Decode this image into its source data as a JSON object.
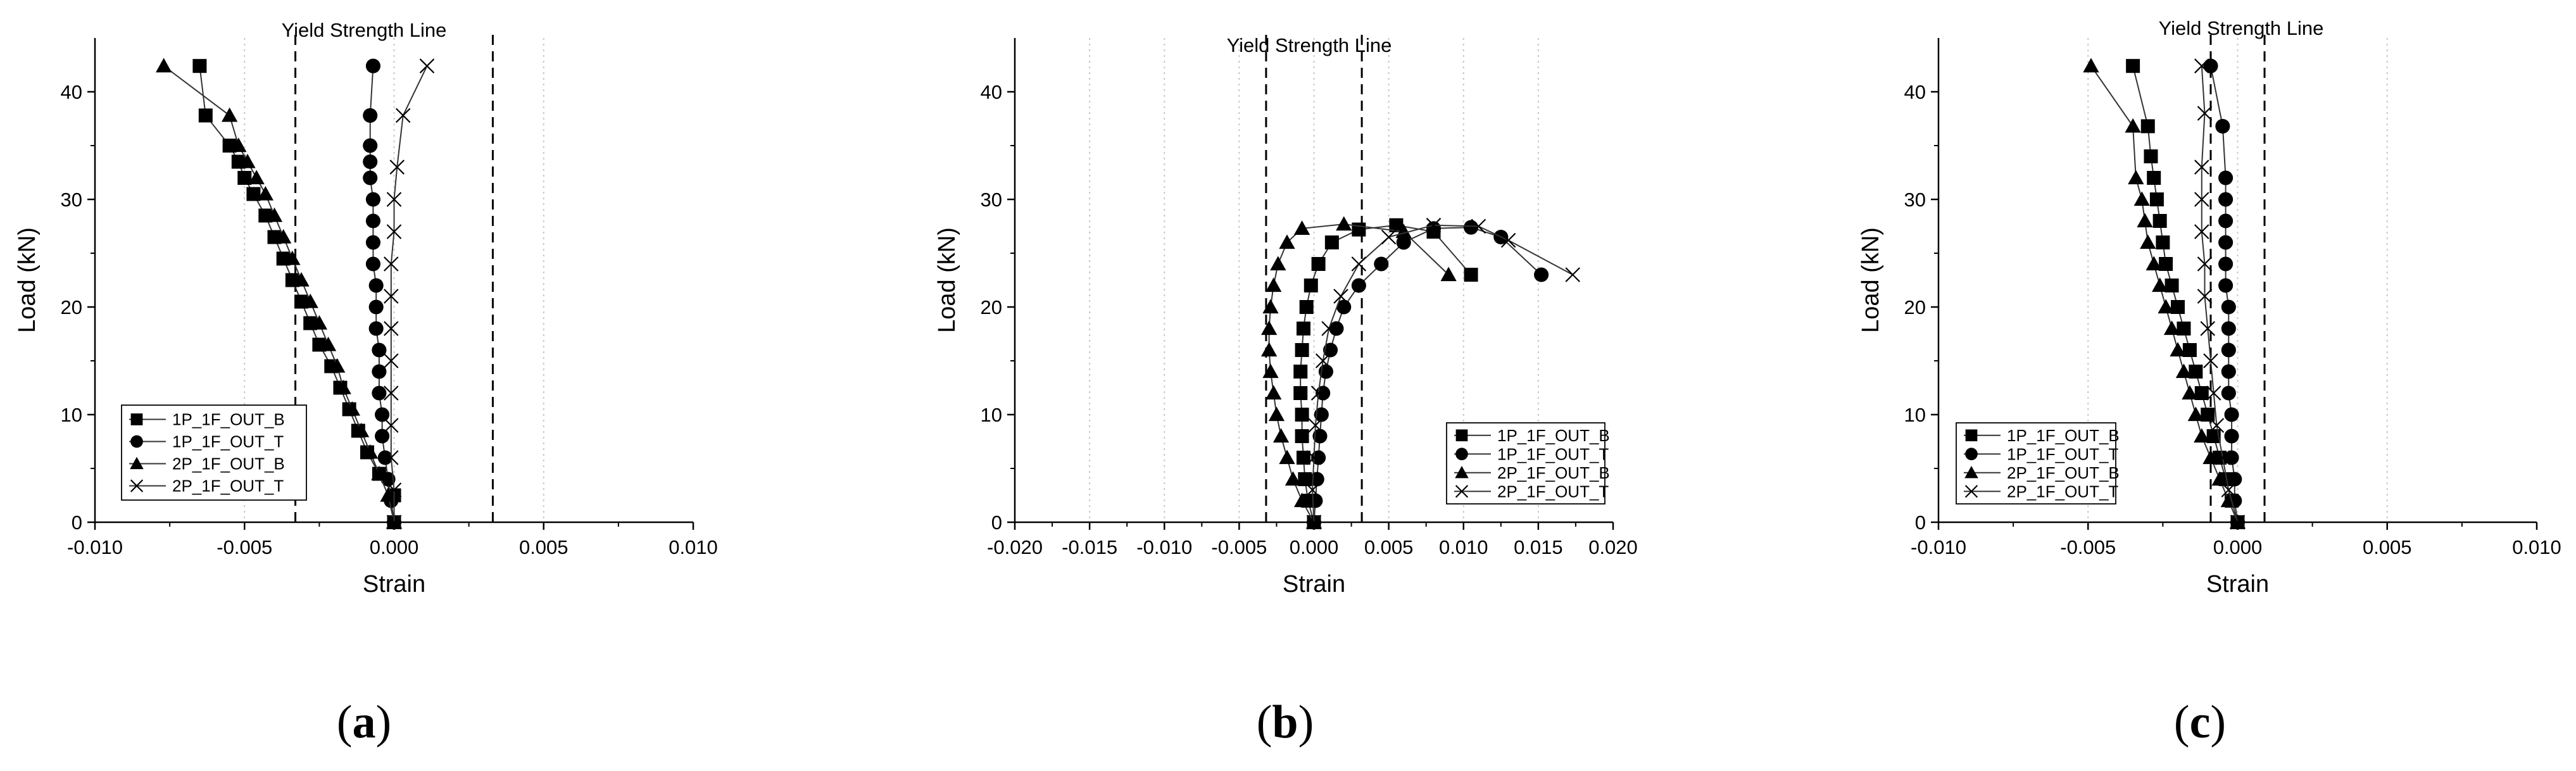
{
  "chart_data": [
    {
      "type": "line",
      "panel_label": {
        "open": "(",
        "letter": "a",
        "close": ")"
      },
      "xlabel": "Strain",
      "ylabel": "Load (kN)",
      "xlim": [
        -0.01,
        0.01
      ],
      "ylim": [
        0,
        45
      ],
      "x_ticks": [
        -0.01,
        -0.005,
        0.0,
        0.005,
        0.01
      ],
      "x_tick_labels": [
        "-0.010",
        "-0.005",
        "0.000",
        "0.005",
        "0.010"
      ],
      "y_ticks": [
        0,
        10,
        20,
        30,
        40
      ],
      "y_tick_labels": [
        "0",
        "10",
        "20",
        "30",
        "40"
      ],
      "grid": "vertical-dotted",
      "annotation": "Yield Strength Line",
      "yield_lines_x": [
        -0.0033,
        0.0033
      ],
      "legend_position": "lower-left",
      "series": [
        {
          "name": "1P_1F_OUT_B",
          "marker": "square",
          "points": [
            [
              0.0,
              0.0
            ],
            [
              0.0,
              2.5
            ],
            [
              -0.0005,
              4.5
            ],
            [
              -0.0009,
              6.5
            ],
            [
              -0.0012,
              8.5
            ],
            [
              -0.0015,
              10.5
            ],
            [
              -0.0018,
              12.5
            ],
            [
              -0.0021,
              14.5
            ],
            [
              -0.0025,
              16.5
            ],
            [
              -0.0028,
              18.5
            ],
            [
              -0.0031,
              20.5
            ],
            [
              -0.0034,
              22.5
            ],
            [
              -0.0037,
              24.5
            ],
            [
              -0.004,
              26.5
            ],
            [
              -0.0043,
              28.5
            ],
            [
              -0.0047,
              30.5
            ],
            [
              -0.005,
              32.0
            ],
            [
              -0.0052,
              33.5
            ],
            [
              -0.0055,
              35.0
            ],
            [
              -0.0063,
              37.8
            ],
            [
              -0.0065,
              42.4
            ]
          ]
        },
        {
          "name": "1P_1F_OUT_T",
          "marker": "circle",
          "points": [
            [
              0.0,
              0.0
            ],
            [
              -0.0001,
              2.0
            ],
            [
              -0.0002,
              4.0
            ],
            [
              -0.0003,
              6.0
            ],
            [
              -0.0004,
              8.0
            ],
            [
              -0.0004,
              10.0
            ],
            [
              -0.0005,
              12.0
            ],
            [
              -0.0005,
              14.0
            ],
            [
              -0.0005,
              16.0
            ],
            [
              -0.0006,
              18.0
            ],
            [
              -0.0006,
              20.0
            ],
            [
              -0.0006,
              22.0
            ],
            [
              -0.0007,
              24.0
            ],
            [
              -0.0007,
              26.0
            ],
            [
              -0.0007,
              28.0
            ],
            [
              -0.0007,
              30.0
            ],
            [
              -0.0008,
              32.0
            ],
            [
              -0.0008,
              33.5
            ],
            [
              -0.0008,
              35.0
            ],
            [
              -0.0008,
              37.8
            ],
            [
              -0.0007,
              42.4
            ]
          ]
        },
        {
          "name": "2P_1F_OUT_B",
          "marker": "triangle",
          "points": [
            [
              0.0,
              0.0
            ],
            [
              -0.0002,
              2.5
            ],
            [
              -0.0005,
              4.5
            ],
            [
              -0.0008,
              6.5
            ],
            [
              -0.0011,
              8.5
            ],
            [
              -0.0014,
              10.5
            ],
            [
              -0.0017,
              12.5
            ],
            [
              -0.0019,
              14.5
            ],
            [
              -0.0022,
              16.5
            ],
            [
              -0.0025,
              18.5
            ],
            [
              -0.0028,
              20.5
            ],
            [
              -0.0031,
              22.5
            ],
            [
              -0.0034,
              24.5
            ],
            [
              -0.0037,
              26.5
            ],
            [
              -0.004,
              28.5
            ],
            [
              -0.0043,
              30.5
            ],
            [
              -0.0046,
              32.0
            ],
            [
              -0.0049,
              33.5
            ],
            [
              -0.0052,
              35.0
            ],
            [
              -0.0055,
              37.8
            ],
            [
              -0.0077,
              42.4
            ]
          ]
        },
        {
          "name": "2P_1F_OUT_T",
          "marker": "x",
          "points": [
            [
              0.0,
              0.0
            ],
            [
              0.0,
              3.0
            ],
            [
              -0.0001,
              6.0
            ],
            [
              -0.0001,
              9.0
            ],
            [
              -0.0001,
              12.0
            ],
            [
              -0.0001,
              15.0
            ],
            [
              -0.0001,
              18.0
            ],
            [
              -0.0001,
              21.0
            ],
            [
              -0.0001,
              24.0
            ],
            [
              0.0,
              27.0
            ],
            [
              0.0,
              30.0
            ],
            [
              0.0001,
              33.0
            ],
            [
              0.0003,
              37.8
            ],
            [
              0.0011,
              42.4
            ]
          ]
        }
      ]
    },
    {
      "type": "line",
      "panel_label": {
        "open": "(",
        "letter": "b",
        "close": ")"
      },
      "xlabel": "Strain",
      "ylabel": "Load (kN)",
      "xlim": [
        -0.02,
        0.02
      ],
      "ylim": [
        0,
        45
      ],
      "x_ticks": [
        -0.02,
        -0.015,
        -0.01,
        -0.005,
        0.0,
        0.005,
        0.01,
        0.015,
        0.02
      ],
      "x_tick_labels": [
        "-0.020",
        "-0.015",
        "-0.010",
        "-0.005",
        "0.000",
        "0.005",
        "0.010",
        "0.015",
        "0.020"
      ],
      "y_ticks": [
        0,
        10,
        20,
        30,
        40
      ],
      "y_tick_labels": [
        "0",
        "10",
        "20",
        "30",
        "40"
      ],
      "grid": "vertical-dotted",
      "annotation": "Yield Strength Line",
      "yield_lines_x": [
        -0.0032,
        0.0032
      ],
      "legend_position": "lower-right",
      "series": [
        {
          "name": "1P_1F_OUT_B",
          "marker": "square",
          "points": [
            [
              0.0,
              0.0
            ],
            [
              -0.0004,
              2.0
            ],
            [
              -0.0006,
              4.0
            ],
            [
              -0.0007,
              6.0
            ],
            [
              -0.0008,
              8.0
            ],
            [
              -0.0008,
              10.0
            ],
            [
              -0.0009,
              12.0
            ],
            [
              -0.0009,
              14.0
            ],
            [
              -0.0008,
              16.0
            ],
            [
              -0.0007,
              18.0
            ],
            [
              -0.0005,
              20.0
            ],
            [
              -0.0002,
              22.0
            ],
            [
              0.0003,
              24.0
            ],
            [
              0.0012,
              26.0
            ],
            [
              0.003,
              27.2
            ],
            [
              0.0055,
              27.6
            ],
            [
              0.008,
              27.0
            ],
            [
              0.0105,
              23.0
            ]
          ]
        },
        {
          "name": "1P_1F_OUT_T",
          "marker": "circle",
          "points": [
            [
              0.0,
              0.0
            ],
            [
              0.0001,
              2.0
            ],
            [
              0.0002,
              4.0
            ],
            [
              0.0003,
              6.0
            ],
            [
              0.0004,
              8.0
            ],
            [
              0.0005,
              10.0
            ],
            [
              0.0006,
              12.0
            ],
            [
              0.0008,
              14.0
            ],
            [
              0.0011,
              16.0
            ],
            [
              0.0015,
              18.0
            ],
            [
              0.002,
              20.0
            ],
            [
              0.003,
              22.0
            ],
            [
              0.0045,
              24.0
            ],
            [
              0.006,
              26.0
            ],
            [
              0.008,
              27.3
            ],
            [
              0.0105,
              27.4
            ],
            [
              0.0125,
              26.5
            ],
            [
              0.0152,
              23.0
            ]
          ]
        },
        {
          "name": "2P_1F_OUT_B",
          "marker": "triangle",
          "points": [
            [
              0.0,
              0.0
            ],
            [
              -0.0008,
              2.0
            ],
            [
              -0.0014,
              4.0
            ],
            [
              -0.0018,
              6.0
            ],
            [
              -0.0022,
              8.0
            ],
            [
              -0.0025,
              10.0
            ],
            [
              -0.0027,
              12.0
            ],
            [
              -0.0029,
              14.0
            ],
            [
              -0.003,
              16.0
            ],
            [
              -0.003,
              18.0
            ],
            [
              -0.0029,
              20.0
            ],
            [
              -0.0027,
              22.0
            ],
            [
              -0.0024,
              24.0
            ],
            [
              -0.0018,
              26.0
            ],
            [
              -0.0008,
              27.3
            ],
            [
              0.002,
              27.7
            ],
            [
              0.006,
              27.0
            ],
            [
              0.009,
              23.0
            ]
          ]
        },
        {
          "name": "2P_1F_OUT_T",
          "marker": "x",
          "points": [
            [
              0.0,
              0.0
            ],
            [
              -0.0001,
              3.0
            ],
            [
              0.0,
              6.0
            ],
            [
              0.0001,
              9.0
            ],
            [
              0.0003,
              12.0
            ],
            [
              0.0006,
              15.0
            ],
            [
              0.001,
              18.0
            ],
            [
              0.0018,
              21.0
            ],
            [
              0.003,
              24.0
            ],
            [
              0.005,
              26.5
            ],
            [
              0.008,
              27.6
            ],
            [
              0.011,
              27.5
            ],
            [
              0.013,
              26.2
            ],
            [
              0.0173,
              23.0
            ]
          ]
        }
      ]
    },
    {
      "type": "line",
      "panel_label": {
        "open": "(",
        "letter": "c",
        "close": ")"
      },
      "xlabel": "Strain",
      "ylabel": "Load (kN)",
      "xlim": [
        -0.01,
        0.01
      ],
      "ylim": [
        0,
        45
      ],
      "x_ticks": [
        -0.01,
        -0.005,
        0.0,
        0.005,
        0.01
      ],
      "x_tick_labels": [
        "-0.010",
        "-0.005",
        "0.000",
        "0.005",
        "0.010"
      ],
      "y_ticks": [
        0,
        10,
        20,
        30,
        40
      ],
      "y_tick_labels": [
        "0",
        "10",
        "20",
        "30",
        "40"
      ],
      "grid": "vertical-dotted",
      "annotation": "Yield Strength Line",
      "yield_lines_x": [
        -0.0009,
        0.0009
      ],
      "legend_position": "lower-left",
      "series": [
        {
          "name": "1P_1F_OUT_B",
          "marker": "square",
          "points": [
            [
              0.0,
              0.0
            ],
            [
              -0.0002,
              2.0
            ],
            [
              -0.0004,
              4.0
            ],
            [
              -0.0006,
              6.0
            ],
            [
              -0.0008,
              8.0
            ],
            [
              -0.001,
              10.0
            ],
            [
              -0.0012,
              12.0
            ],
            [
              -0.0014,
              14.0
            ],
            [
              -0.0016,
              16.0
            ],
            [
              -0.0018,
              18.0
            ],
            [
              -0.002,
              20.0
            ],
            [
              -0.0022,
              22.0
            ],
            [
              -0.0024,
              24.0
            ],
            [
              -0.0025,
              26.0
            ],
            [
              -0.0026,
              28.0
            ],
            [
              -0.0027,
              30.0
            ],
            [
              -0.0028,
              32.0
            ],
            [
              -0.0029,
              34.0
            ],
            [
              -0.003,
              36.8
            ],
            [
              -0.0035,
              42.4
            ]
          ]
        },
        {
          "name": "1P_1F_OUT_T",
          "marker": "circle",
          "points": [
            [
              0.0,
              0.0
            ],
            [
              -0.0001,
              2.0
            ],
            [
              -0.0001,
              4.0
            ],
            [
              -0.0002,
              6.0
            ],
            [
              -0.0002,
              8.0
            ],
            [
              -0.0002,
              10.0
            ],
            [
              -0.0003,
              12.0
            ],
            [
              -0.0003,
              14.0
            ],
            [
              -0.0003,
              16.0
            ],
            [
              -0.0003,
              18.0
            ],
            [
              -0.0003,
              20.0
            ],
            [
              -0.0004,
              22.0
            ],
            [
              -0.0004,
              24.0
            ],
            [
              -0.0004,
              26.0
            ],
            [
              -0.0004,
              28.0
            ],
            [
              -0.0004,
              30.0
            ],
            [
              -0.0004,
              32.0
            ],
            [
              -0.0005,
              36.8
            ],
            [
              -0.0009,
              42.4
            ]
          ]
        },
        {
          "name": "2P_1F_OUT_B",
          "marker": "triangle",
          "points": [
            [
              0.0,
              0.0
            ],
            [
              -0.0003,
              2.0
            ],
            [
              -0.0006,
              4.0
            ],
            [
              -0.0009,
              6.0
            ],
            [
              -0.0012,
              8.0
            ],
            [
              -0.0014,
              10.0
            ],
            [
              -0.0016,
              12.0
            ],
            [
              -0.0018,
              14.0
            ],
            [
              -0.002,
              16.0
            ],
            [
              -0.0022,
              18.0
            ],
            [
              -0.0024,
              20.0
            ],
            [
              -0.0026,
              22.0
            ],
            [
              -0.0028,
              24.0
            ],
            [
              -0.003,
              26.0
            ],
            [
              -0.0031,
              28.0
            ],
            [
              -0.0032,
              30.0
            ],
            [
              -0.0034,
              32.0
            ],
            [
              -0.0035,
              36.8
            ],
            [
              -0.0049,
              42.4
            ]
          ]
        },
        {
          "name": "2P_1F_OUT_T",
          "marker": "x",
          "points": [
            [
              0.0,
              0.0
            ],
            [
              -0.0003,
              3.0
            ],
            [
              -0.0005,
              6.0
            ],
            [
              -0.0007,
              9.0
            ],
            [
              -0.0008,
              12.0
            ],
            [
              -0.0009,
              15.0
            ],
            [
              -0.001,
              18.0
            ],
            [
              -0.0011,
              21.0
            ],
            [
              -0.0011,
              24.0
            ],
            [
              -0.0012,
              27.0
            ],
            [
              -0.0012,
              30.0
            ],
            [
              -0.0012,
              33.0
            ],
            [
              -0.0011,
              38.0
            ],
            [
              -0.0012,
              42.4
            ]
          ]
        }
      ]
    }
  ]
}
